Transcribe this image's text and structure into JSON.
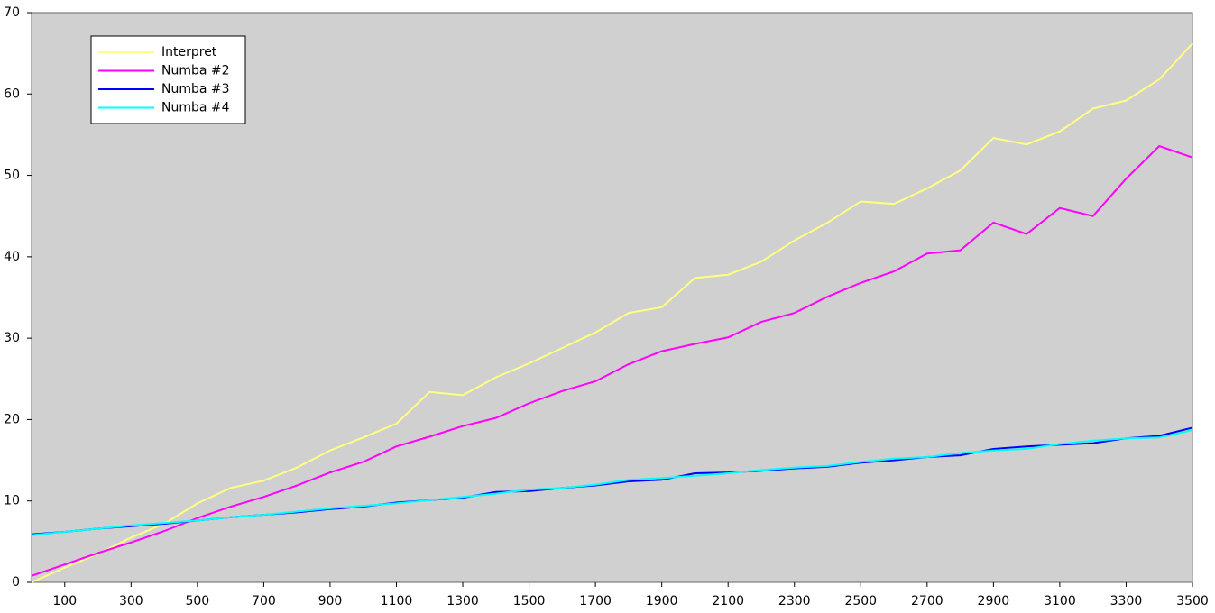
{
  "chart_data": {
    "type": "line",
    "x": [
      0,
      100,
      200,
      300,
      400,
      500,
      600,
      700,
      800,
      900,
      1000,
      1100,
      1200,
      1300,
      1400,
      1500,
      1600,
      1700,
      1800,
      1900,
      2000,
      2100,
      2200,
      2300,
      2400,
      2500,
      2600,
      2700,
      2800,
      2900,
      3000,
      3100,
      3200,
      3300,
      3400,
      3500
    ],
    "series": [
      {
        "name": "Interpret",
        "color": "#ffff80",
        "values": [
          0,
          1.8,
          3.5,
          5.5,
          7.2,
          9.7,
          11.6,
          12.5,
          14.1,
          16.2,
          17.8,
          19.5,
          23.4,
          23.0,
          25.2,
          26.9,
          28.8,
          30.7,
          33.1,
          33.8,
          37.4,
          37.8,
          39.4,
          42.0,
          44.2,
          46.8,
          46.5,
          48.4,
          50.6,
          54.6,
          53.8,
          55.4,
          58.2,
          59.2,
          61.8,
          66.2
        ]
      },
      {
        "name": "Numba #2",
        "color": "#ff00ff",
        "values": [
          0.8,
          2.2,
          3.6,
          4.9,
          6.3,
          7.9,
          9.3,
          10.5,
          11.9,
          13.5,
          14.8,
          16.7,
          17.9,
          19.2,
          20.2,
          22.0,
          23.5,
          24.7,
          26.8,
          28.4,
          29.3,
          30.1,
          32.0,
          33.1,
          35.1,
          36.8,
          38.2,
          40.4,
          40.8,
          44.2,
          42.8,
          46.0,
          45.0,
          49.6,
          53.6,
          52.2
        ]
      },
      {
        "name": "Numba #3",
        "color": "#0000ff",
        "values": [
          5.9,
          6.2,
          6.6,
          6.9,
          7.2,
          7.6,
          8.0,
          8.3,
          8.6,
          9.0,
          9.3,
          9.8,
          10.1,
          10.4,
          11.1,
          11.2,
          11.6,
          11.9,
          12.4,
          12.6,
          13.4,
          13.5,
          13.7,
          14.0,
          14.2,
          14.7,
          15.0,
          15.4,
          15.6,
          16.4,
          16.7,
          16.9,
          17.1,
          17.7,
          18.0,
          19.0
        ]
      },
      {
        "name": "Numba #4",
        "color": "#00ffff",
        "values": [
          5.8,
          6.2,
          6.6,
          7.0,
          7.3,
          7.6,
          8.0,
          8.3,
          8.7,
          9.1,
          9.4,
          9.7,
          10.1,
          10.5,
          10.9,
          11.4,
          11.6,
          12.0,
          12.6,
          12.8,
          13.1,
          13.4,
          13.8,
          14.1,
          14.3,
          14.8,
          15.2,
          15.4,
          15.9,
          16.2,
          16.4,
          17.0,
          17.4,
          17.7,
          17.8,
          18.7
        ]
      }
    ],
    "xlim": [
      0,
      3500
    ],
    "xticks": [
      100,
      300,
      500,
      700,
      900,
      1100,
      1300,
      1500,
      1700,
      1900,
      2100,
      2300,
      2500,
      2700,
      2900,
      3100,
      3300,
      3500
    ],
    "ylim": [
      0,
      70
    ],
    "yticks": [
      0,
      10,
      20,
      30,
      40,
      50,
      60,
      70
    ],
    "grid": false,
    "legend": "upper left",
    "plot_background": "#d0d0d0"
  }
}
